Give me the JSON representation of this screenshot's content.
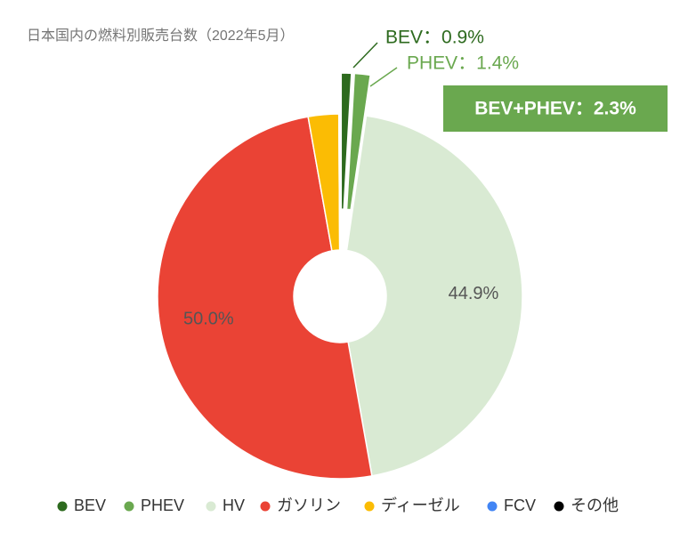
{
  "chart_data": {
    "type": "donut",
    "title": "日本国内の燃料別販売台数（2022年5月）",
    "categories": [
      "BEV",
      "PHEV",
      "HV",
      "ガソリン",
      "ディーゼル",
      "FCV",
      "その他"
    ],
    "values": [
      0.9,
      1.4,
      44.9,
      50.0,
      2.7,
      0.0,
      0.1
    ],
    "value_labels": [
      "BEV：0.9%",
      "PHEV：1.4%",
      "44.9%",
      "50.0%",
      null,
      null,
      null
    ],
    "colors": [
      "#2d6a1e",
      "#6aa84f",
      "#d9ead3",
      "#ea4335",
      "#fbbc04",
      "#4285f4",
      "#000000"
    ],
    "exploded": [
      true,
      true,
      false,
      false,
      false,
      false,
      false
    ],
    "annotation": "BEV+PHEV：2.3%",
    "legend": "bottom"
  }
}
